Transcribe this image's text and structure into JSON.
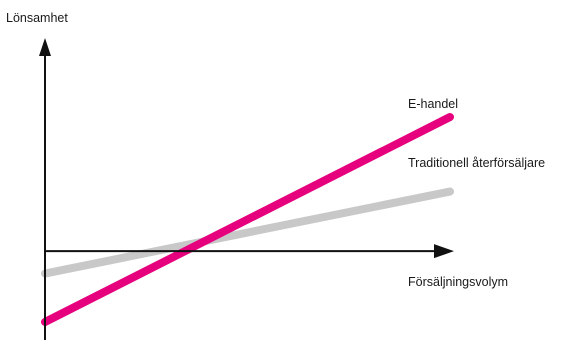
{
  "chart_data": {
    "type": "line",
    "title": "",
    "xlabel": "Försäljningsvolym",
    "ylabel": "Lönsamhet",
    "axis_ticks": false,
    "grid": false,
    "series": [
      {
        "name": "E-handel",
        "color": "#e6007e",
        "points": [
          [
            0,
            -3.8
          ],
          [
            10,
            7.2
          ]
        ]
      },
      {
        "name": "Traditionell återförsäljare",
        "color": "#c8c8c8",
        "points": [
          [
            0,
            -1.2
          ],
          [
            10,
            3.2
          ]
        ]
      }
    ]
  }
}
